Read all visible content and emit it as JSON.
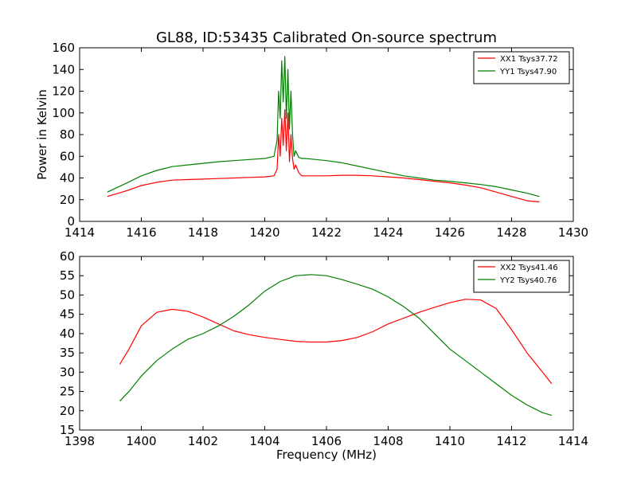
{
  "figure": {
    "title": "GL88, ID:53435 Calibrated On-source spectrum"
  },
  "chart_data": [
    {
      "type": "line",
      "title": "GL88, ID:53435 Calibrated On-source spectrum",
      "xlabel": "",
      "ylabel": "Power in Kelvin",
      "xlim": [
        1414,
        1430
      ],
      "ylim": [
        0,
        160
      ],
      "xticks": [
        1414,
        1416,
        1418,
        1420,
        1422,
        1424,
        1426,
        1428,
        1430
      ],
      "yticks": [
        0,
        20,
        40,
        60,
        80,
        100,
        120,
        140,
        160
      ],
      "grid": false,
      "legend_position": "top-right",
      "series": [
        {
          "name": "XX1 Tsys37.72",
          "color": "#ff0000",
          "x": [
            1414.9,
            1415.5,
            1416.0,
            1416.5,
            1417.0,
            1417.5,
            1418.0,
            1418.5,
            1419.0,
            1419.5,
            1420.0,
            1420.3,
            1420.4,
            1420.45,
            1420.5,
            1420.55,
            1420.6,
            1420.65,
            1420.7,
            1420.75,
            1420.8,
            1420.85,
            1420.9,
            1420.95,
            1421.0,
            1421.1,
            1421.2,
            1421.3,
            1421.5,
            1422.0,
            1422.5,
            1423.0,
            1423.5,
            1424.0,
            1424.5,
            1425.0,
            1425.5,
            1426.0,
            1426.5,
            1427.0,
            1427.5,
            1428.0,
            1428.5,
            1428.9
          ],
          "y": [
            23,
            28,
            33,
            36,
            38,
            38.5,
            39,
            39.5,
            40,
            40.5,
            41,
            42,
            48,
            80,
            60,
            95,
            70,
            103,
            65,
            100,
            55,
            80,
            58,
            48,
            52,
            45,
            42,
            42,
            42,
            42,
            42.5,
            42.5,
            42,
            41,
            40,
            38.5,
            37,
            35.5,
            33.5,
            31,
            27,
            23,
            19,
            18
          ]
        },
        {
          "name": "YY1 Tsys47.90",
          "color": "#008000",
          "x": [
            1414.9,
            1415.5,
            1416.0,
            1416.5,
            1417.0,
            1417.5,
            1418.0,
            1418.5,
            1419.0,
            1419.5,
            1420.0,
            1420.3,
            1420.4,
            1420.45,
            1420.5,
            1420.55,
            1420.6,
            1420.65,
            1420.7,
            1420.75,
            1420.8,
            1420.85,
            1420.9,
            1420.95,
            1421.0,
            1421.1,
            1421.2,
            1421.3,
            1421.5,
            1422.0,
            1422.5,
            1423.0,
            1423.5,
            1424.0,
            1424.5,
            1425.0,
            1425.5,
            1426.0,
            1426.5,
            1427.0,
            1427.5,
            1428.0,
            1428.5,
            1428.9
          ],
          "y": [
            27,
            35,
            42,
            47,
            50.5,
            52,
            53.5,
            55,
            56,
            57,
            58,
            60,
            75,
            120,
            95,
            148,
            110,
            152,
            95,
            140,
            85,
            120,
            80,
            60,
            65,
            59,
            58,
            58,
            57.5,
            56,
            54,
            51,
            48,
            45,
            42,
            40,
            38,
            37,
            35.5,
            34,
            32,
            29,
            26,
            23
          ]
        }
      ]
    },
    {
      "type": "line",
      "title": "",
      "xlabel": "Frequency (MHz)",
      "ylabel": "",
      "xlim": [
        1398,
        1414
      ],
      "ylim": [
        15,
        60
      ],
      "xticks": [
        1398,
        1400,
        1402,
        1404,
        1406,
        1408,
        1410,
        1412,
        1414
      ],
      "yticks": [
        15,
        20,
        25,
        30,
        35,
        40,
        45,
        50,
        55,
        60
      ],
      "grid": false,
      "legend_position": "top-right",
      "series": [
        {
          "name": "XX2 Tsys41.46",
          "color": "#ff0000",
          "x": [
            1399.3,
            1399.6,
            1400.0,
            1400.5,
            1401.0,
            1401.5,
            1402.0,
            1402.5,
            1403.0,
            1403.5,
            1404.0,
            1404.5,
            1405.0,
            1405.5,
            1406.0,
            1406.5,
            1407.0,
            1407.5,
            1408.0,
            1408.5,
            1409.0,
            1409.5,
            1410.0,
            1410.5,
            1411.0,
            1411.5,
            1412.0,
            1412.5,
            1413.0,
            1413.3
          ],
          "y": [
            32,
            36,
            42,
            45.5,
            46.3,
            45.8,
            44.3,
            42.5,
            40.7,
            39.7,
            39,
            38.5,
            38,
            37.8,
            37.8,
            38.2,
            39,
            40.5,
            42.5,
            44,
            45.5,
            46.8,
            48,
            48.9,
            48.7,
            46.5,
            41,
            35,
            30,
            27
          ]
        },
        {
          "name": "YY2 Tsys40.76",
          "color": "#008000",
          "x": [
            1399.3,
            1399.6,
            1400.0,
            1400.5,
            1401.0,
            1401.5,
            1402.0,
            1402.5,
            1403.0,
            1403.5,
            1404.0,
            1404.5,
            1405.0,
            1405.5,
            1406.0,
            1406.5,
            1407.0,
            1407.5,
            1408.0,
            1408.5,
            1409.0,
            1409.5,
            1410.0,
            1410.5,
            1411.0,
            1411.5,
            1412.0,
            1412.5,
            1413.0,
            1413.3
          ],
          "y": [
            22.5,
            25,
            29,
            33,
            36,
            38.5,
            40,
            42,
            44.5,
            47.5,
            51,
            53.5,
            55,
            55.3,
            55,
            54,
            52.8,
            51.5,
            49.5,
            47,
            44,
            40,
            36,
            33,
            30,
            27,
            24,
            21.5,
            19.5,
            18.8
          ]
        }
      ]
    }
  ]
}
